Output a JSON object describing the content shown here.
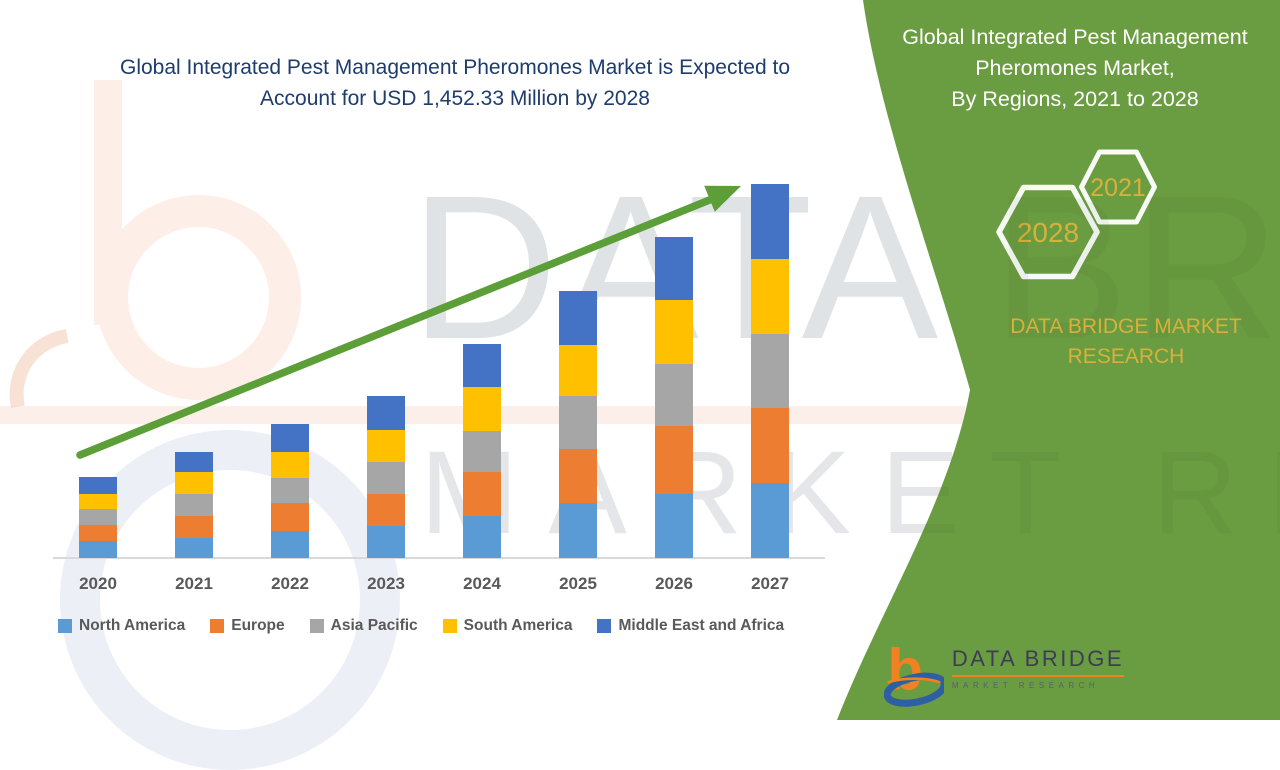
{
  "header": {
    "title_line1": "Global Integrated Pest Management Pheromones Market is Expected to",
    "title_line2": "Account for USD 1,452.33 Million by 2028",
    "title_color": "#1e3c6e"
  },
  "right_panel": {
    "heading_line1": "Global Integrated Pest Management",
    "heading_line2": "Pheromones Market,",
    "heading_line3": "By Regions, 2021 to 2028",
    "hex_year_small": "2021",
    "hex_year_large": "2028",
    "brand_line1": "DATA BRIDGE MARKET",
    "brand_line2": "RESEARCH",
    "panel_color": "#6a9c41",
    "accent_gold": "#d9b03c"
  },
  "chart_data": {
    "type": "bar",
    "stacked": true,
    "title": "Global Integrated Pest Management Pheromones Market is Expected to Account for USD 1,452.33 Million by 2028",
    "xlabel": "",
    "ylabel": "",
    "categories": [
      "2020",
      "2021",
      "2022",
      "2023",
      "2024",
      "2025",
      "2026",
      "2027"
    ],
    "series": [
      {
        "name": "North America",
        "color": "#5b9bd5",
        "values": [
          17,
          20,
          27,
          32,
          42,
          55,
          64,
          75
        ]
      },
      {
        "name": "Europe",
        "color": "#ed7d31",
        "values": [
          16,
          22,
          28,
          32,
          44,
          54,
          68,
          75
        ]
      },
      {
        "name": "Asia Pacific",
        "color": "#a6a6a6",
        "values": [
          16,
          22,
          25,
          32,
          41,
          53,
          62,
          74
        ]
      },
      {
        "name": "South America",
        "color": "#ffc000",
        "values": [
          15,
          22,
          26,
          32,
          44,
          51,
          64,
          75
        ]
      },
      {
        "name": "Middle East and Africa",
        "color": "#4472c4",
        "values": [
          17,
          20,
          28,
          34,
          43,
          54,
          63,
          75
        ]
      }
    ],
    "units": "relative height (no value axis shown in figure)",
    "y_axis_visible": false,
    "gridlines": false,
    "legend_position": "bottom",
    "trend_arrow": true,
    "trend_arrow_color": "#5c9e37"
  },
  "watermark": {
    "line1": "DATA BRIDGE",
    "line2": "MARKET RESEARCH"
  },
  "logo": {
    "monogram": "b",
    "wordmark": "DATA BRIDGE",
    "tagline": "MARKET RESEARCH",
    "orange": "#f08223",
    "blue": "#2e5fa3"
  }
}
